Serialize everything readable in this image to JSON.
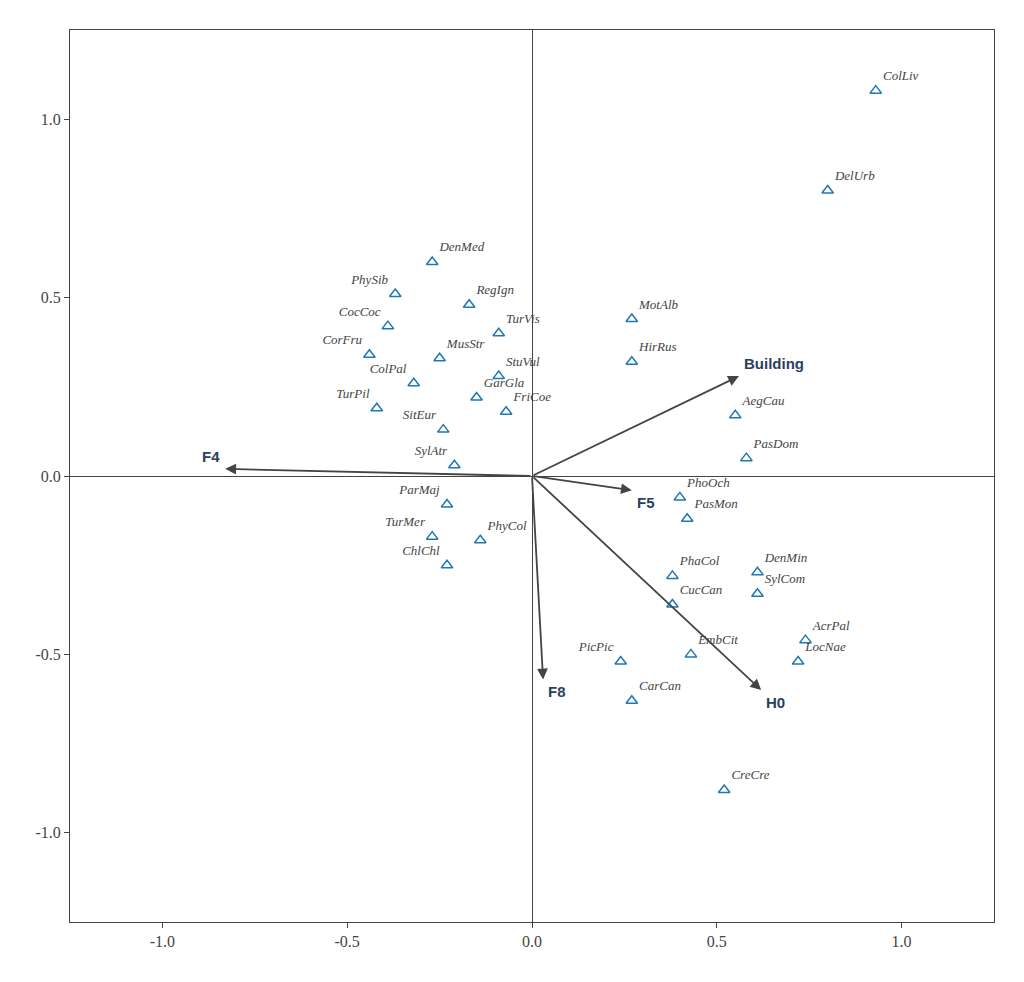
{
  "chart_data": {
    "type": "scatter",
    "marker": "triangle-up-open",
    "grid": false,
    "xlim": [
      -1.25,
      1.25
    ],
    "ylim": [
      -1.25,
      1.25
    ],
    "xticks": [
      {
        "value": -1.0,
        "label": "-1.0"
      },
      -0.5,
      {
        "value": 0.0,
        "label": "0.0"
      },
      0.5,
      {
        "value": 1.0,
        "label": "1.0"
      }
    ],
    "yticks": [
      {
        "value": -1.0,
        "label": "-1.0"
      },
      -0.5,
      {
        "value": 0.0,
        "label": "0.0"
      },
      0.5,
      {
        "value": 1.0,
        "label": "1.0"
      }
    ],
    "points": [
      {
        "label": "ColLiv",
        "x": 0.93,
        "y": 1.08
      },
      {
        "label": "DelUrb",
        "x": 0.8,
        "y": 0.8
      },
      {
        "label": "DenMed",
        "x": -0.27,
        "y": 0.6
      },
      {
        "label": "PhySib",
        "x": -0.37,
        "y": 0.51
      },
      {
        "label": "RegIgn",
        "x": -0.17,
        "y": 0.48
      },
      {
        "label": "CocCoc",
        "x": -0.39,
        "y": 0.42
      },
      {
        "label": "TurVis",
        "x": -0.09,
        "y": 0.4
      },
      {
        "label": "CorFru",
        "x": -0.44,
        "y": 0.34
      },
      {
        "label": "MusStr",
        "x": -0.25,
        "y": 0.33
      },
      {
        "label": "ColPal",
        "x": -0.32,
        "y": 0.26
      },
      {
        "label": "StuVul",
        "x": -0.09,
        "y": 0.28
      },
      {
        "label": "TurPil",
        "x": -0.42,
        "y": 0.19
      },
      {
        "label": "GarGla",
        "x": -0.15,
        "y": 0.22
      },
      {
        "label": "SitEur",
        "x": -0.24,
        "y": 0.13
      },
      {
        "label": "FriCoe",
        "x": -0.07,
        "y": 0.18
      },
      {
        "label": "SylAtr",
        "x": -0.21,
        "y": 0.03
      },
      {
        "label": "MotAlb",
        "x": 0.27,
        "y": 0.44
      },
      {
        "label": "HirRus",
        "x": 0.27,
        "y": 0.32
      },
      {
        "label": "AegCau",
        "x": 0.55,
        "y": 0.17
      },
      {
        "label": "PasDom",
        "x": 0.58,
        "y": 0.05
      },
      {
        "label": "PhoOch",
        "x": 0.4,
        "y": -0.06
      },
      {
        "label": "PasMon",
        "x": 0.42,
        "y": -0.12
      },
      {
        "label": "ParMaj",
        "x": -0.23,
        "y": -0.08
      },
      {
        "label": "TurMer",
        "x": -0.27,
        "y": -0.17
      },
      {
        "label": "PhyCol",
        "x": -0.14,
        "y": -0.18
      },
      {
        "label": "ChlChl",
        "x": -0.23,
        "y": -0.25
      },
      {
        "label": "PhaCol",
        "x": 0.38,
        "y": -0.28
      },
      {
        "label": "DenMin",
        "x": 0.61,
        "y": -0.27
      },
      {
        "label": "CucCan",
        "x": 0.38,
        "y": -0.36
      },
      {
        "label": "SylCom",
        "x": 0.61,
        "y": -0.33
      },
      {
        "label": "PicPic",
        "x": 0.24,
        "y": -0.52
      },
      {
        "label": "EmbCit",
        "x": 0.43,
        "y": -0.5
      },
      {
        "label": "AcrPal",
        "x": 0.74,
        "y": -0.46
      },
      {
        "label": "LocNae",
        "x": 0.72,
        "y": -0.52
      },
      {
        "label": "CarCan",
        "x": 0.27,
        "y": -0.63
      },
      {
        "label": "CreCre",
        "x": 0.52,
        "y": -0.88
      }
    ],
    "arrows": [
      {
        "label": "F4",
        "x": -0.83,
        "y": 0.02
      },
      {
        "label": "F5",
        "x": 0.27,
        "y": -0.04
      },
      {
        "label": "F8",
        "x": 0.03,
        "y": -0.57
      },
      {
        "label": "Building",
        "x": 0.56,
        "y": 0.28
      },
      {
        "label": "H0",
        "x": 0.62,
        "y": -0.6
      }
    ]
  }
}
